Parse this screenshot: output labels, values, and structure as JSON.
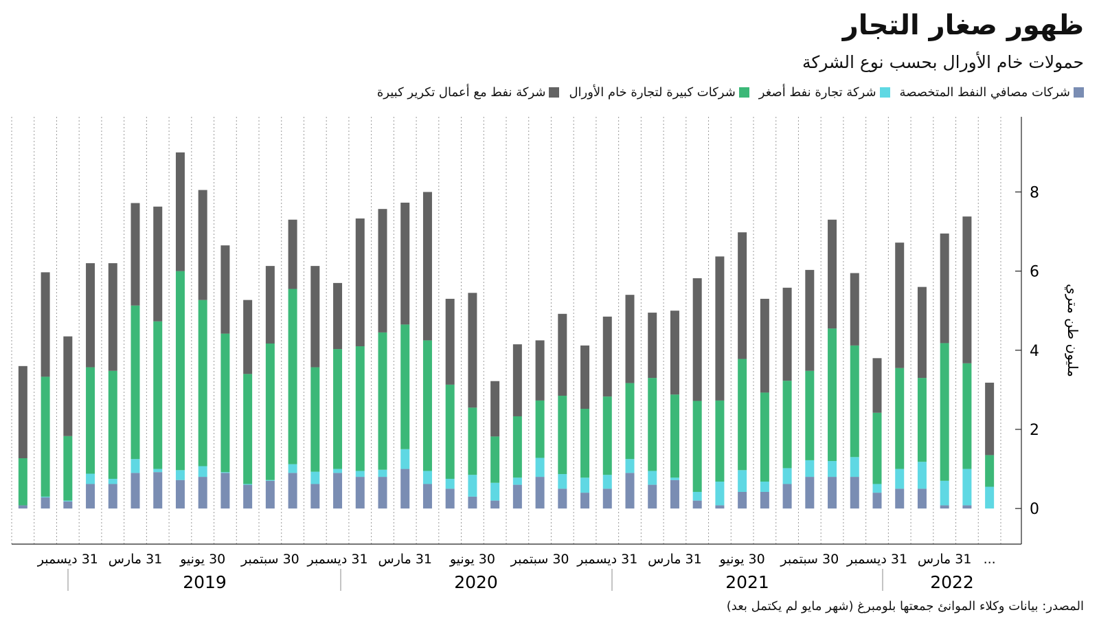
{
  "chart_data": {
    "type": "stacked_bar",
    "title": "ظهور صغار التجار",
    "subtitle": "حمولات خام الأورال بحسب نوع الشركة",
    "y_label": "مليون طن متري",
    "source": "المصدر: بيانات وكلاء الموانئ جمعتها بلومبرغ (شهر مايو لم يكتمل بعد)",
    "categories": [
      null,
      null,
      "31 ديسمبر",
      null,
      null,
      "31 مارس",
      null,
      null,
      "30 يونيو",
      null,
      null,
      "30 سبتمبر",
      null,
      null,
      "31 ديسمبر",
      null,
      null,
      "31 مارس",
      null,
      null,
      "30 يونيو",
      null,
      null,
      "30 سبتمبر",
      null,
      null,
      "31 ديسمبر",
      null,
      null,
      "31 مارس",
      null,
      null,
      "30 يونيو",
      null,
      null,
      "30 سبتمبر",
      null,
      null,
      "31 ديسمبر",
      null,
      null,
      "31 مارس",
      null,
      "..."
    ],
    "years": [
      "2019",
      "2020",
      "2021",
      "2022"
    ],
    "series": [
      {
        "name": "شركات مصافي النفط المتخصصة",
        "color": "#7a8db3",
        "values": [
          0.08,
          0.28,
          0.18,
          0.62,
          0.62,
          0.9,
          0.92,
          0.72,
          0.8,
          0.9,
          0.6,
          0.7,
          0.9,
          0.62,
          0.9,
          0.8,
          0.8,
          1.0,
          0.62,
          0.5,
          0.3,
          0.2,
          0.6,
          0.8,
          0.5,
          0.4,
          0.5,
          0.9,
          0.6,
          0.72,
          0.2,
          0.08,
          0.42,
          0.42,
          0.62,
          0.8,
          0.8,
          0.8,
          0.4,
          0.5,
          0.5,
          0.08,
          0.08,
          0
        ]
      },
      {
        "name": "شركة تجارة نفط أصغر",
        "color": "#5fd8e3",
        "values": [
          0,
          0.02,
          0.02,
          0.26,
          0.13,
          0.35,
          0.08,
          0.25,
          0.27,
          0.02,
          0.02,
          0.02,
          0.22,
          0.31,
          0.1,
          0.15,
          0.18,
          0.5,
          0.33,
          0.25,
          0.55,
          0.45,
          0.18,
          0.48,
          0.37,
          0.38,
          0.35,
          0.35,
          0.35,
          0.06,
          0.22,
          0.6,
          0.55,
          0.26,
          0.4,
          0.42,
          0.4,
          0.5,
          0.22,
          0.5,
          0.68,
          0.62,
          0.92,
          0.55
        ]
      },
      {
        "name": "شركات كبيرة لتجارة خام الأورال",
        "color": "#3cb878",
        "values": [
          1.19,
          3.03,
          1.63,
          2.69,
          2.73,
          3.88,
          3.73,
          5.03,
          4.2,
          3.5,
          2.78,
          3.45,
          4.43,
          2.64,
          3.03,
          3.15,
          3.47,
          3.15,
          3.3,
          2.38,
          1.7,
          1.17,
          1.55,
          1.45,
          1.98,
          1.74,
          1.98,
          1.92,
          2.35,
          2.1,
          2.3,
          2.05,
          2.81,
          2.25,
          2.21,
          2.26,
          3.35,
          2.82,
          1.8,
          2.55,
          2.12,
          3.48,
          2.67,
          0.8
        ]
      },
      {
        "name": "شركة نفط مع أعمال تكرير كبيرة",
        "color": "#636363",
        "values": [
          2.33,
          2.64,
          2.52,
          2.63,
          2.72,
          2.59,
          2.9,
          3.0,
          2.78,
          2.23,
          1.87,
          1.96,
          1.75,
          2.56,
          1.67,
          3.23,
          3.12,
          3.08,
          3.75,
          2.17,
          2.9,
          1.4,
          1.82,
          1.52,
          2.07,
          1.6,
          2.02,
          2.23,
          1.65,
          2.12,
          3.1,
          3.64,
          3.2,
          2.37,
          2.35,
          2.55,
          2.75,
          1.83,
          1.38,
          3.17,
          2.3,
          2.77,
          3.71,
          1.83
        ]
      }
    ],
    "ylim": [
      -0.9,
      9.9
    ],
    "yticks": [
      0,
      2,
      4,
      6,
      8
    ]
  }
}
